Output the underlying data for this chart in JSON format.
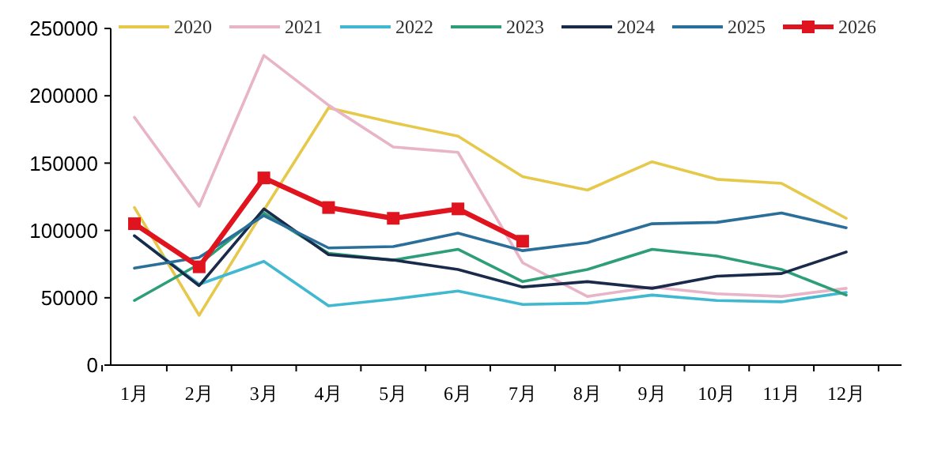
{
  "chart_data": {
    "type": "line",
    "categories": [
      "1月",
      "2月",
      "3月",
      "4月",
      "5月",
      "6月",
      "7月",
      "8月",
      "9月",
      "10月",
      "11月",
      "12月"
    ],
    "ylim": [
      0,
      250000
    ],
    "yticks": [
      0,
      50000,
      100000,
      150000,
      200000,
      250000
    ],
    "legend": "top",
    "grid": false,
    "series": [
      {
        "name": "2020",
        "color": "#e6c84a",
        "marker": "none",
        "values": [
          117000,
          37000,
          115000,
          191000,
          180000,
          170000,
          140000,
          130000,
          151000,
          138000,
          135000,
          109000
        ]
      },
      {
        "name": "2021",
        "color": "#e8b4c8",
        "marker": "none",
        "values": [
          184000,
          118000,
          230000,
          193000,
          162000,
          158000,
          76000,
          51000,
          58000,
          53000,
          51000,
          57000
        ]
      },
      {
        "name": "2022",
        "color": "#3fb8d0",
        "marker": "none",
        "values": [
          96000,
          60000,
          77000,
          44000,
          49000,
          55000,
          45000,
          46000,
          52000,
          48000,
          47000,
          54000
        ]
      },
      {
        "name": "2023",
        "color": "#2e9e78",
        "marker": "none",
        "values": [
          48000,
          75000,
          113000,
          83000,
          78000,
          86000,
          62000,
          71000,
          86000,
          81000,
          71000,
          52000
        ]
      },
      {
        "name": "2024",
        "color": "#1a2a4a",
        "marker": "none",
        "values": [
          96000,
          59000,
          116000,
          82000,
          78000,
          71000,
          58000,
          62000,
          57000,
          66000,
          68000,
          84000
        ]
      },
      {
        "name": "2025",
        "color": "#2a6e9a",
        "marker": "none",
        "values": [
          72000,
          80000,
          111000,
          87000,
          88000,
          98000,
          85000,
          91000,
          105000,
          106000,
          113000,
          102000
        ]
      },
      {
        "name": "2026",
        "color": "#e0141e",
        "marker": "square",
        "values": [
          105000,
          73000,
          139000,
          117000,
          109000,
          116000,
          92000,
          null,
          null,
          null,
          null,
          null
        ]
      }
    ]
  }
}
